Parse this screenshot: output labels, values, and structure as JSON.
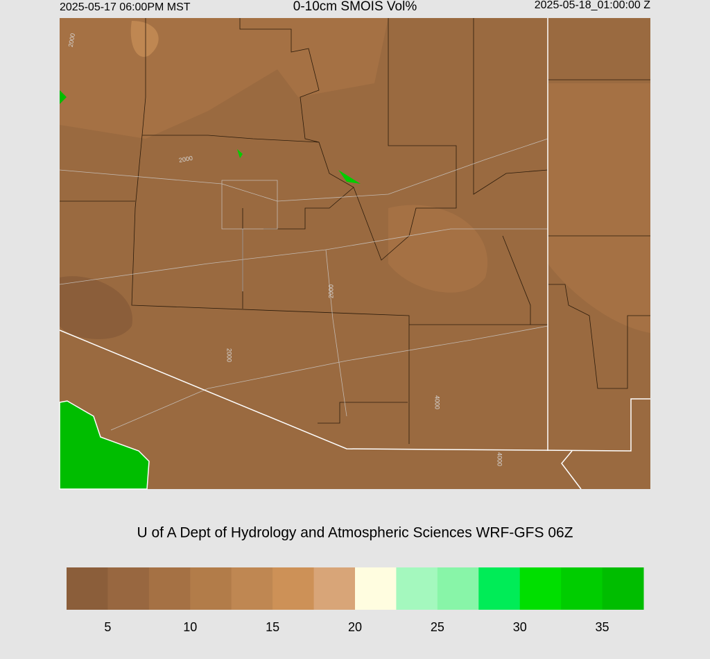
{
  "header": {
    "valid_local": "2025-05-17 06:00PM MST",
    "title": "0-10cm SMOIS Vol%",
    "valid_utc": "2025-05-18_01:00:00 Z"
  },
  "map": {
    "contour_labels": [
      "2000",
      "2000",
      "2000",
      "2000",
      "4000",
      "4000"
    ]
  },
  "credit": "U of A Dept of Hydrology and Atmospheric Sciences WRF-GFS 06Z",
  "colorbar": {
    "bounds": [
      2.5,
      37.5
    ],
    "colors": [
      "#8b5e3a",
      "#986740",
      "#a57144",
      "#b27c49",
      "#bf8752",
      "#cd9157",
      "#d8a578",
      "#fffde0",
      "#a4f8be",
      "#88f5a8",
      "#00ec57",
      "#00df00",
      "#00cd00",
      "#00bd00"
    ],
    "ticks": [
      5,
      10,
      15,
      20,
      25,
      30,
      35
    ]
  }
}
